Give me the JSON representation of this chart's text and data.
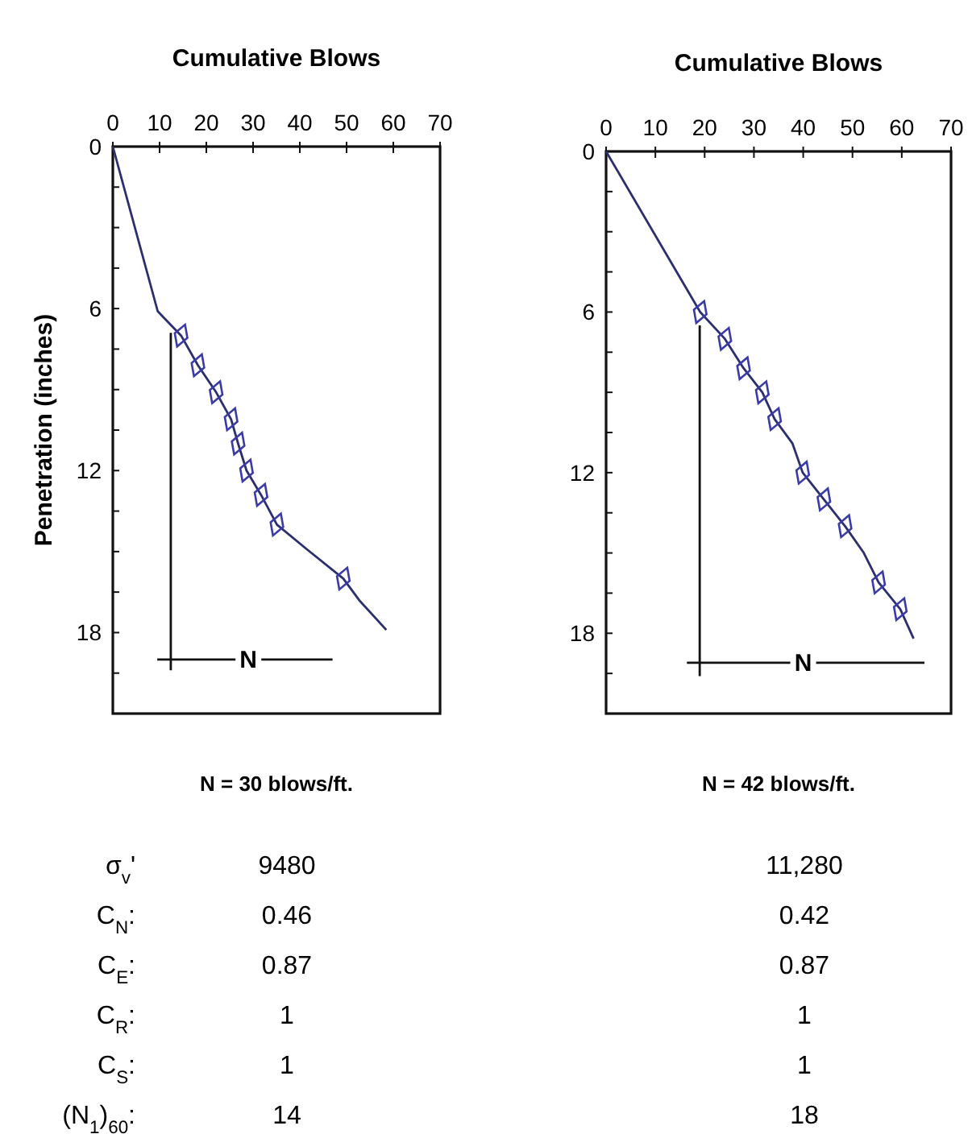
{
  "chart_data": [
    {
      "type": "line",
      "xlabel": "Cumulative Blows",
      "ylabel": "Penetration (inches)",
      "xlim": [
        0,
        70
      ],
      "xticks": [
        0,
        10,
        20,
        30,
        40,
        50,
        60,
        70
      ],
      "ylim": [
        21,
        0
      ],
      "yticks": [
        0,
        {
          "value": 1.5,
          "label": null
        },
        {
          "value": 3,
          "label": null
        },
        {
          "value": 4.5,
          "label": null
        },
        6,
        {
          "value": 7.5,
          "label": null
        },
        {
          "value": 9,
          "label": null
        },
        {
          "value": 10.5,
          "label": null
        },
        12,
        {
          "value": 13.5,
          "label": null
        },
        {
          "value": 15,
          "label": null
        },
        {
          "value": 16.5,
          "label": null
        },
        18,
        {
          "value": 19.5,
          "label": null
        }
      ],
      "grid": false,
      "series": [
        {
          "type": "line",
          "marker": "none",
          "color": "#2b2f6e",
          "x": [
            0,
            9.6,
            14.6,
            18.2,
            22.1,
            25.3,
            26.8,
            28.6,
            31.7,
            35.1,
            41.4,
            49.3,
            52.7,
            58.5
          ],
          "values": [
            0,
            6.1,
            7.0,
            8.1,
            9.1,
            10.1,
            11.0,
            12.0,
            12.9,
            14.0,
            14.9,
            16.0,
            16.8,
            17.9
          ]
        },
        {
          "type": "scatter",
          "marker": "diamond",
          "color": "#3b3ba8",
          "x": [
            14.6,
            18.2,
            22.1,
            25.3,
            26.8,
            28.6,
            31.7,
            35.1,
            49.3
          ],
          "values": [
            7.0,
            8.1,
            9.1,
            10.1,
            11.0,
            12.0,
            12.9,
            14.0,
            16.0
          ]
        },
        {
          "type": "line",
          "marker": "none",
          "color": "#111111",
          "x": [
            12.4,
            12.4
          ],
          "values": [
            6.9,
            19.4
          ]
        },
        {
          "type": "line",
          "marker": "none",
          "color": "#111111",
          "x": [
            9.5,
            47
          ],
          "values": [
            19,
            19
          ]
        }
      ],
      "annotations": [
        {
          "text": "N",
          "x": 29,
          "y": 19
        },
        "N = 30 blows/ft."
      ]
    },
    {
      "type": "line",
      "xlabel": "Cumulative Blows",
      "xlim": [
        0,
        70
      ],
      "xticks": [
        0,
        10,
        20,
        30,
        40,
        50,
        60,
        70
      ],
      "ylim": [
        21,
        0
      ],
      "yticks": [
        0,
        {
          "value": 1.5,
          "label": null
        },
        {
          "value": 3,
          "label": null
        },
        {
          "value": 4.5,
          "label": null
        },
        6,
        {
          "value": 7.5,
          "label": null
        },
        {
          "value": 9,
          "label": null
        },
        {
          "value": 10.5,
          "label": null
        },
        12,
        {
          "value": 13.5,
          "label": null
        },
        {
          "value": 15,
          "label": null
        },
        {
          "value": 16.5,
          "label": null
        },
        18,
        {
          "value": 19.5,
          "label": null
        }
      ],
      "grid": false,
      "series": [
        {
          "type": "line",
          "marker": "none",
          "color": "#2b2f6e",
          "x": [
            0,
            19.1,
            24.1,
            27.9,
            31.7,
            34.2,
            37.8,
            39.9,
            44.2,
            48.5,
            52.3,
            55.3,
            59.7,
            62.4
          ],
          "values": [
            0,
            6.0,
            7.0,
            8.1,
            9.0,
            10.0,
            10.9,
            12.0,
            13.0,
            14.0,
            15.0,
            16.1,
            17.1,
            18.2
          ]
        },
        {
          "type": "scatter",
          "marker": "diamond",
          "color": "#3b3ba8",
          "x": [
            19.1,
            24.1,
            27.9,
            31.7,
            34.2,
            39.9,
            44.2,
            48.5,
            55.3,
            59.7
          ],
          "values": [
            6.0,
            7.0,
            8.1,
            9.0,
            10.0,
            12.0,
            13.0,
            14.0,
            16.1,
            17.1
          ]
        },
        {
          "type": "line",
          "marker": "none",
          "color": "#111111",
          "x": [
            19,
            19
          ],
          "values": [
            6.5,
            19.6
          ]
        },
        {
          "type": "line",
          "marker": "none",
          "color": "#111111",
          "x": [
            16.4,
            64.6
          ],
          "values": [
            19.1,
            19.1
          ]
        }
      ],
      "annotations": [
        {
          "text": "N",
          "x": 40,
          "y": 19.1
        },
        "N = 42 blows/ft."
      ]
    },
    {
      "type": "other",
      "y_categories": [
        "σ$_{v}$'",
        "C$_{N}$:",
        "C$_{E}$:",
        "C$_{R}$:",
        "C$_{S}$:",
        "(N$_{1}$)$_{60}$:"
      ],
      "cell_labels": [
        [
          "9480",
          "11,280"
        ],
        [
          "0.46",
          "0.42"
        ],
        [
          "0.87",
          "0.87"
        ],
        [
          "1",
          "1"
        ],
        [
          "1",
          "1"
        ],
        [
          "14",
          "18"
        ]
      ]
    }
  ]
}
